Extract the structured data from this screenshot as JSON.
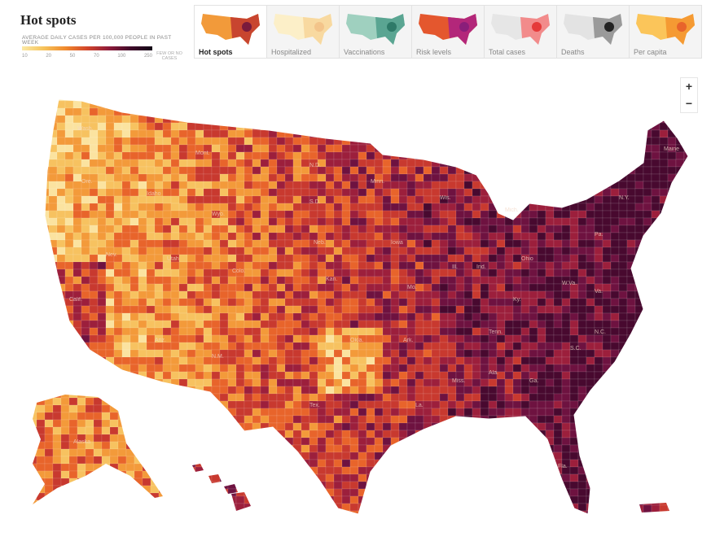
{
  "header": {
    "title": "Hot spots",
    "subtitle": "AVERAGE DAILY CASES PER 100,000 PEOPLE IN PAST WEEK",
    "legend_ticks": [
      "10",
      "20",
      "50",
      "70",
      "100",
      "250"
    ],
    "legend_na": "FEW OR NO CASES",
    "legend_colors": [
      "#fbe9a6",
      "#f6c35b",
      "#f08a2d",
      "#d2452b",
      "#8e1b3a",
      "#3f0a2a"
    ]
  },
  "tabs": [
    {
      "label": "Hot spots",
      "active": true,
      "colors": [
        "#f29a3a",
        "#c8452f",
        "#7a1a3c"
      ]
    },
    {
      "label": "Hospitalized",
      "active": false,
      "colors": [
        "#fcefc8",
        "#f8d9a0",
        "#f3c48a"
      ]
    },
    {
      "label": "Vaccinations",
      "active": false,
      "colors": [
        "#9fd0bf",
        "#5aa592",
        "#2e7a68"
      ]
    },
    {
      "label": "Risk levels",
      "active": false,
      "colors": [
        "#e4572e",
        "#b3277a",
        "#8a1e7a"
      ]
    },
    {
      "label": "Total cases",
      "active": false,
      "colors": [
        "#e6e6e6",
        "#f28b8b",
        "#e53a3a"
      ]
    },
    {
      "label": "Deaths",
      "active": false,
      "colors": [
        "#e3e3e3",
        "#9a9a9a",
        "#222222"
      ]
    },
    {
      "label": "Per capita",
      "active": false,
      "colors": [
        "#fbc55a",
        "#f59a33",
        "#e8642b"
      ]
    }
  ],
  "zoom": {
    "in": "+",
    "out": "−"
  },
  "map": {
    "state_labels": [
      "Wash.",
      "Ore.",
      "Calif.",
      "Nev.",
      "Idaho",
      "Mont.",
      "Wyo.",
      "Utah",
      "Colo.",
      "Ariz.",
      "N.M.",
      "N.D.",
      "S.D.",
      "Neb.",
      "Kan.",
      "Okla.",
      "Tex.",
      "Minn.",
      "Iowa",
      "Mo.",
      "Ark.",
      "La.",
      "Wis.",
      "Ill.",
      "Miss.",
      "Ala.",
      "Ga.",
      "Fla.",
      "Tenn.",
      "Ky.",
      "Ind.",
      "Ohio",
      "Mich.",
      "W.Va.",
      "Va.",
      "N.C.",
      "S.C.",
      "Pa.",
      "N.Y.",
      "Maine",
      "Alaska"
    ]
  }
}
